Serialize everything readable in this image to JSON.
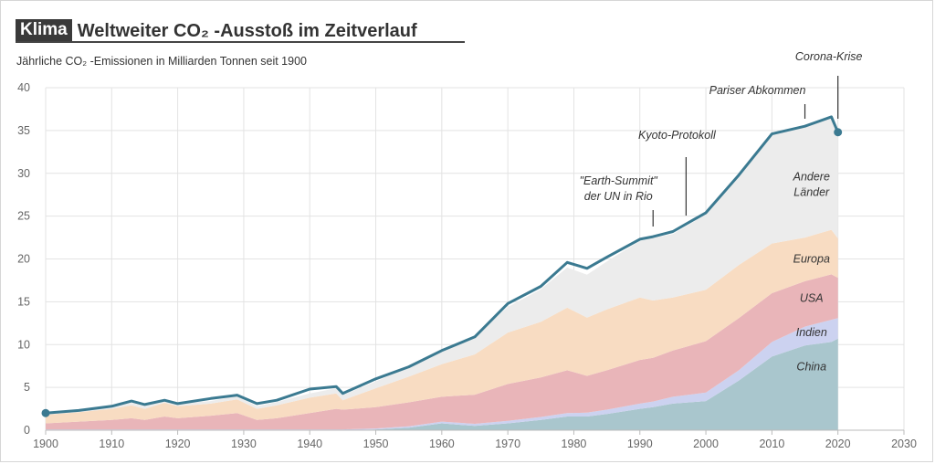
{
  "header": {
    "tag": "Klima",
    "title": "Weltweiter CO₂ -Ausstoß im Zeitverlauf",
    "subtitle": "Jährliche CO₂ -Emissionen in Milliarden Tonnen seit 1900"
  },
  "colors": {
    "total_line": "#3b7a91",
    "China": "#a9c6cd",
    "Indien": "#ccd2f0",
    "USA": "#e9b5b9",
    "Europa": "#f8dcc2",
    "Andere Länder": "#ececec"
  },
  "chart_data": {
    "type": "area",
    "stacked": true,
    "xlim": [
      1900,
      2030
    ],
    "ylim": [
      0,
      40
    ],
    "xticks": [
      1900,
      1910,
      1920,
      1930,
      1940,
      1950,
      1960,
      1970,
      1980,
      1990,
      2000,
      2010,
      2020,
      2030
    ],
    "yticks": [
      0,
      5,
      10,
      15,
      20,
      25,
      30,
      35,
      40
    ],
    "grid": true,
    "x": [
      1900,
      1905,
      1910,
      1913,
      1915,
      1918,
      1920,
      1925,
      1929,
      1932,
      1935,
      1940,
      1944,
      1945,
      1950,
      1955,
      1960,
      1965,
      1970,
      1975,
      1979,
      1982,
      1985,
      1990,
      1992,
      1995,
      2000,
      2005,
      2010,
      2015,
      2019,
      2020
    ],
    "series": [
      {
        "name": "China",
        "values": [
          0.0,
          0.0,
          0.0,
          0.0,
          0.0,
          0.0,
          0.0,
          0.0,
          0.0,
          0.0,
          0.0,
          0.0,
          0.0,
          0.0,
          0.1,
          0.3,
          0.8,
          0.5,
          0.8,
          1.2,
          1.6,
          1.6,
          1.9,
          2.5,
          2.7,
          3.1,
          3.4,
          5.8,
          8.6,
          9.9,
          10.3,
          10.7
        ]
      },
      {
        "name": "Indien",
        "values": [
          0.1,
          0.1,
          0.1,
          0.1,
          0.1,
          0.1,
          0.1,
          0.1,
          0.1,
          0.1,
          0.1,
          0.1,
          0.1,
          0.1,
          0.1,
          0.15,
          0.2,
          0.25,
          0.3,
          0.35,
          0.4,
          0.45,
          0.5,
          0.6,
          0.65,
          0.8,
          1.0,
          1.2,
          1.7,
          2.2,
          2.6,
          2.4
        ]
      },
      {
        "name": "USA",
        "values": [
          0.7,
          0.9,
          1.1,
          1.3,
          1.1,
          1.5,
          1.3,
          1.6,
          1.9,
          1.1,
          1.3,
          1.9,
          2.4,
          2.3,
          2.5,
          2.8,
          2.9,
          3.4,
          4.3,
          4.6,
          5.0,
          4.3,
          4.6,
          5.1,
          5.1,
          5.4,
          6.0,
          6.1,
          5.7,
          5.3,
          5.3,
          4.7
        ]
      },
      {
        "name": "Europa",
        "values": [
          1.0,
          1.1,
          1.3,
          1.5,
          1.3,
          1.6,
          1.4,
          1.4,
          1.6,
          1.3,
          1.5,
          1.8,
          1.8,
          1.1,
          2.2,
          3.0,
          3.8,
          4.7,
          6.0,
          6.5,
          7.3,
          6.8,
          7.1,
          7.3,
          6.7,
          6.2,
          6.0,
          6.2,
          5.8,
          5.1,
          5.2,
          4.6
        ]
      },
      {
        "name": "Andere Länder",
        "values": [
          0.2,
          0.2,
          0.3,
          0.3,
          0.3,
          0.3,
          0.3,
          0.3,
          0.4,
          0.3,
          0.4,
          0.5,
          0.6,
          0.6,
          0.8,
          1.1,
          1.6,
          2.1,
          3.0,
          3.8,
          4.7,
          5.0,
          5.6,
          6.6,
          7.3,
          7.4,
          8.8,
          10.5,
          12.7,
          13.0,
          13.2,
          12.6
        ]
      }
    ],
    "total": {
      "values": [
        2.0,
        2.3,
        2.8,
        3.4,
        3.0,
        3.5,
        3.1,
        3.7,
        4.1,
        3.1,
        3.5,
        4.8,
        5.1,
        4.3,
        6.0,
        7.4,
        9.3,
        10.9,
        14.8,
        16.8,
        19.6,
        18.9,
        20.2,
        22.3,
        22.6,
        23.2,
        25.4,
        29.8,
        34.6,
        35.5,
        36.6,
        34.8
      ]
    },
    "series_labels": [
      "China",
      "Indien",
      "USA",
      "Europa",
      "Andere Länder"
    ],
    "annotations": [
      {
        "text": "\"Earth-Summit\"",
        "line2": "der UN in Rio",
        "year": 1992
      },
      {
        "text": "Kyoto-Protokoll",
        "year": 1997
      },
      {
        "text": "Pariser Abkommen",
        "year": 2015
      },
      {
        "text": "Corona-Krise",
        "year": 2020
      }
    ]
  }
}
